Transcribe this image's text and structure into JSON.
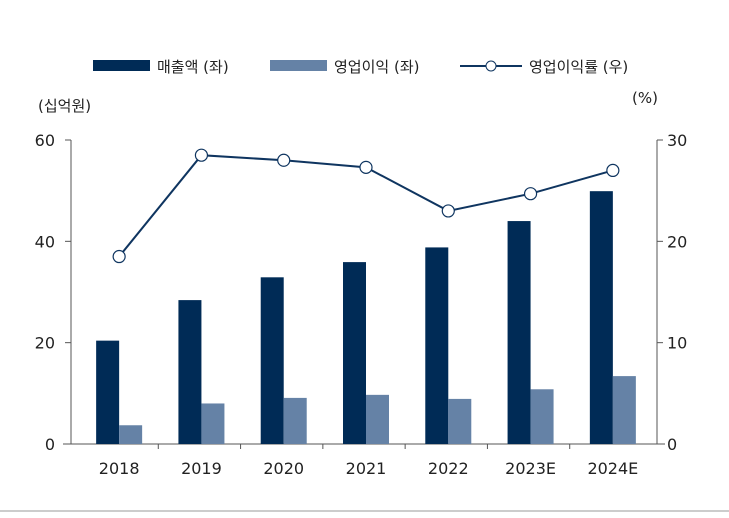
{
  "chart_data": {
    "type": "bar",
    "categories": [
      "2018",
      "2019",
      "2020",
      "2021",
      "2022",
      "2023E",
      "2024E"
    ],
    "left_axis": {
      "label": "(십억원)",
      "range": [
        0,
        60
      ],
      "ticks": [
        "0",
        "20",
        "40",
        "60"
      ]
    },
    "right_axis": {
      "label": "(%)",
      "range": [
        0,
        30
      ],
      "ticks": [
        "0",
        "10",
        "20",
        "30"
      ]
    },
    "series": [
      {
        "name": "매출액 (좌)",
        "type": "bar",
        "axis": "left",
        "color": "#002b56",
        "values": [
          20.4,
          28.4,
          32.9,
          35.9,
          38.8,
          44.0,
          49.9
        ]
      },
      {
        "name": "영업이익 (좌)",
        "type": "bar",
        "axis": "left",
        "color": "#6582a6",
        "values": [
          3.7,
          8.0,
          9.1,
          9.7,
          8.9,
          10.8,
          13.4
        ]
      },
      {
        "name": "영업이익률 (우)",
        "type": "line",
        "axis": "right",
        "color": "#0f3560",
        "values": [
          18.5,
          28.5,
          28.0,
          27.3,
          23.0,
          24.7,
          27.0
        ]
      }
    ],
    "grid": false,
    "legend_position": "top"
  }
}
